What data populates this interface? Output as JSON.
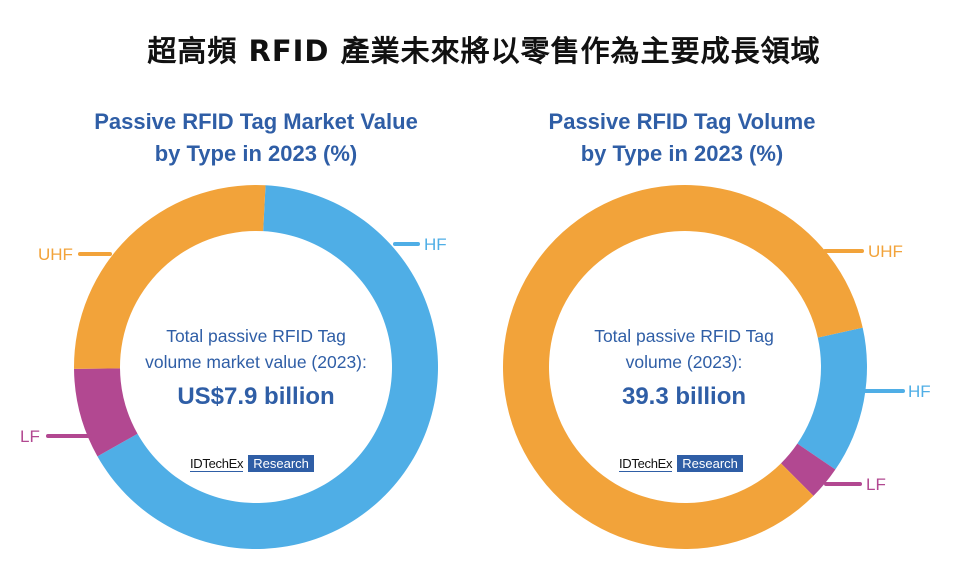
{
  "title": "超高頻 RFID 產業未來將以零售作為主要成長領域",
  "colors": {
    "UHF": "#F2A33A",
    "HF": "#4FAEE6",
    "LF": "#B24891",
    "text": "#2f5ea6"
  },
  "logo": {
    "name": "IDTechEx",
    "tag": "Research"
  },
  "chart_data": [
    {
      "type": "pie",
      "title_line1": "Passive RFID Tag Market Value",
      "title_line2": "by Type in 2023 (%)",
      "center_line1": "Total passive RFID Tag",
      "center_line2": "volume market value (2023):",
      "center_value": "US$7.9 billion",
      "slices": [
        {
          "label": "HF",
          "value": 66
        },
        {
          "label": "LF",
          "value": 8
        },
        {
          "label": "UHF",
          "value": 26
        }
      ]
    },
    {
      "type": "pie",
      "title_line1": "Passive RFID Tag Volume",
      "title_line2": "by Type in 2023 (%)",
      "center_line1": "Total passive RFID Tag",
      "center_line2": "volume (2023):",
      "center_value": "39.3 billion",
      "slices": [
        {
          "label": "HF",
          "value": 13
        },
        {
          "label": "LF",
          "value": 3
        },
        {
          "label": "UHF",
          "value": 84
        }
      ]
    }
  ]
}
